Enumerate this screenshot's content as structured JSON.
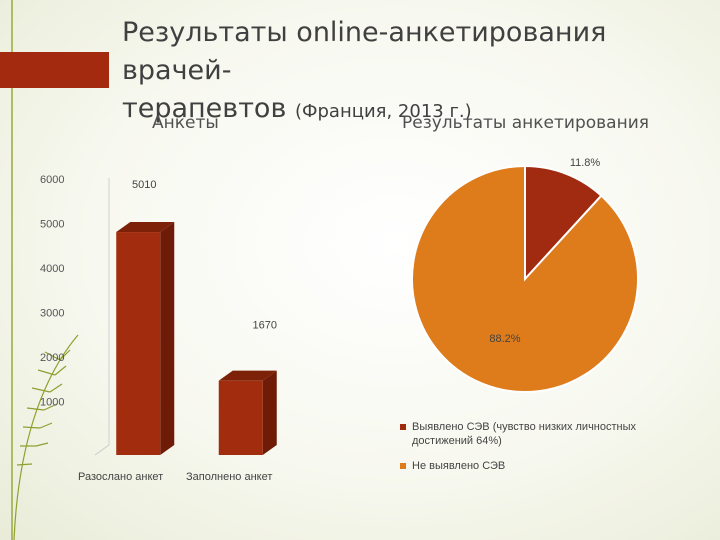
{
  "slide": {
    "title_line1": "Результаты online-анкетирования врачей-",
    "title_line2": "терапевтов",
    "title_sub": "(Франция, 2013 г.)"
  },
  "colors": {
    "accent": "#a0290f",
    "bar": "#a12c0e",
    "pie_orange": "#de7b1b",
    "pie_red": "#a02b10",
    "line": "#8a9a2a"
  },
  "chart_data": [
    {
      "type": "bar",
      "title": "Анкеты",
      "categories": [
        "Разослано анкет",
        "Заполнено анкет"
      ],
      "values": [
        5010,
        1670
      ],
      "data_labels": [
        "5010",
        "1670"
      ],
      "ylim": [
        0,
        6000
      ],
      "yticks": [
        "1000",
        "2000",
        "3000",
        "4000",
        "5000",
        "6000"
      ],
      "style": "3d-column",
      "grid": false
    },
    {
      "type": "pie",
      "title": "Результаты анкетирования",
      "slices": [
        {
          "label": "Выявлено СЭВ (чувство низких личностных достижений 64%)",
          "value": 11.8,
          "data_label": "11.8%",
          "color": "#a02b10"
        },
        {
          "label": "Не выявлено СЭВ",
          "value": 88.2,
          "data_label": "88.2%",
          "color": "#de7b1b"
        }
      ],
      "legend": "bottom-right"
    }
  ]
}
